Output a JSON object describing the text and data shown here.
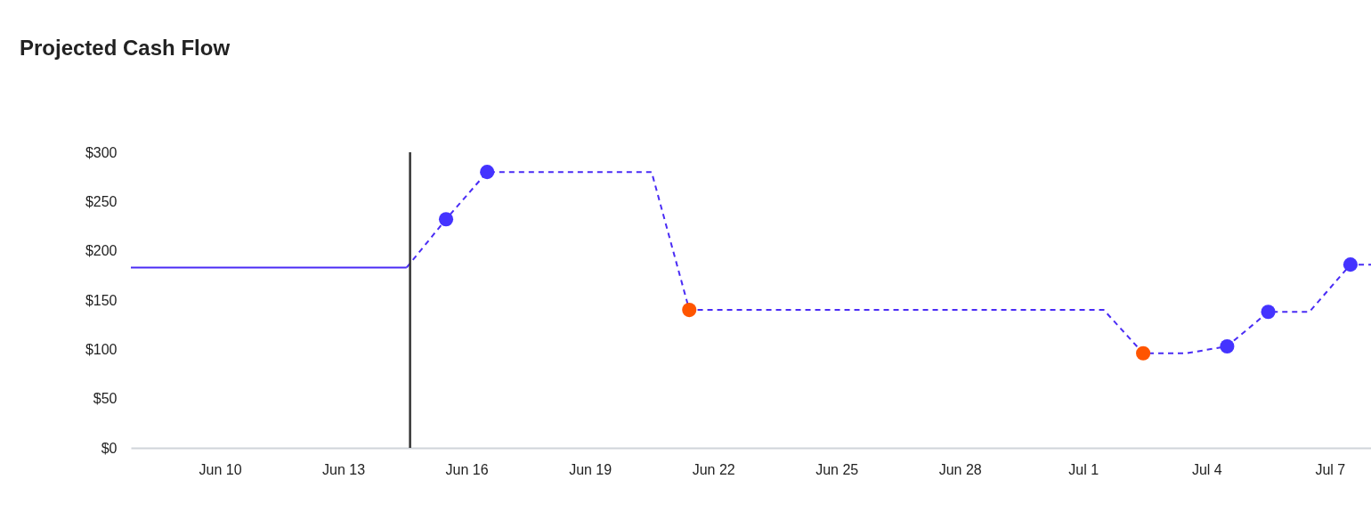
{
  "chart_data": {
    "type": "line",
    "title": "Projected Cash Flow",
    "xlim": [
      "--06-07T20:00",
      "--07-08T00:00"
    ],
    "xticks": [
      {
        "value": "--06-10",
        "label": "Jun 10"
      },
      {
        "value": "--06-13",
        "label": "Jun 13"
      },
      {
        "value": "--06-16",
        "label": "Jun 16"
      },
      {
        "value": "--06-19",
        "label": "Jun 19"
      },
      {
        "value": "--06-22",
        "label": "Jun 22"
      },
      {
        "value": "--06-25",
        "label": "Jun 25"
      },
      {
        "value": "--06-28",
        "label": "Jun 28"
      },
      {
        "value": "--07-01",
        "label": "Jul 1"
      },
      {
        "value": "--07-04",
        "label": "Jul 4"
      },
      {
        "value": "--07-07",
        "label": "Jul 7"
      }
    ],
    "ylim": [
      0,
      300
    ],
    "yticks": [
      {
        "value": 0,
        "label": "$0"
      },
      {
        "value": 50,
        "label": "$50"
      },
      {
        "value": 100,
        "label": "$100"
      },
      {
        "value": 150,
        "label": "$150"
      },
      {
        "value": 200,
        "label": "$200"
      },
      {
        "value": 250,
        "label": "$250"
      },
      {
        "value": 300,
        "label": "$300"
      }
    ],
    "grid": false,
    "series": [
      {
        "type": "line",
        "color": "#4a2cf5",
        "line_style": "solid",
        "marker": "none",
        "x": [
          "--06-07T20:00",
          "--06-14T13:00"
        ],
        "values": [
          183,
          183
        ]
      },
      {
        "type": "line",
        "color": "#4a2cf5",
        "line_style": "dashed",
        "marker": "none",
        "x": [
          "--06-14T13:00",
          "--06-15T12:00",
          "--06-16T12:00",
          "--06-20T12:00",
          "--06-21T10:00",
          "--07-01T12:00",
          "--07-02T11:00",
          "--07-03T12:00",
          "--07-04T12:00",
          "--07-05T12:00",
          "--07-06T12:00",
          "--07-07T12:00",
          "--07-08T00:00"
        ],
        "values": [
          183,
          232,
          280,
          280,
          140,
          140,
          96,
          96,
          103,
          138,
          138,
          186,
          186
        ]
      },
      {
        "type": "scatter",
        "color": "#4433ff",
        "marker": "circle",
        "x": [
          "--06-15T12:00",
          "--06-16T12:00",
          "--07-04T12:00",
          "--07-05T12:00",
          "--07-07T12:00"
        ],
        "values": [
          232,
          280,
          103,
          138,
          186
        ]
      },
      {
        "type": "scatter",
        "color": "#ff5500",
        "marker": "circle",
        "x": [
          "--06-21T10:00",
          "--07-02T11:00"
        ],
        "values": [
          140,
          96
        ]
      }
    ],
    "ref_lines": [
      {
        "axis": "x",
        "value": "--06-14T15:00",
        "color": "#333333"
      }
    ]
  }
}
